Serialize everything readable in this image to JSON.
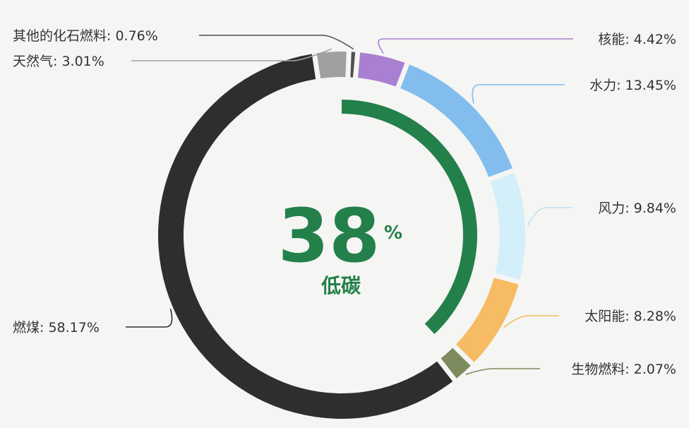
{
  "chart_data": {
    "type": "pie",
    "variant": "donut",
    "slices": [
      {
        "name": "核能",
        "value": 4.42,
        "label": "核能: 4.42%",
        "color": "#a97fd1"
      },
      {
        "name": "水力",
        "value": 13.45,
        "label": "水力: 13.45%",
        "color": "#82bdee"
      },
      {
        "name": "风力",
        "value": 9.84,
        "label": "风力: 9.84%",
        "color": "#d2effa"
      },
      {
        "name": "太阳能",
        "value": 8.28,
        "label": "太阳能: 8.28%",
        "color": "#f6bb63"
      },
      {
        "name": "生物燃料",
        "value": 2.07,
        "label": "生物燃料: 2.07%",
        "color": "#7d8c5e"
      },
      {
        "name": "燃煤",
        "value": 58.17,
        "label": "燃煤: 58.17%",
        "color": "#2e2e2e"
      },
      {
        "name": "天然气",
        "value": 3.01,
        "label": "天然气: 3.01%",
        "color": "#a0a0a0"
      },
      {
        "name": "其他的化石燃料",
        "value": 0.76,
        "label": "其他的化石燃料: 0.76%",
        "color": "#505050"
      }
    ],
    "center": {
      "value": 38,
      "value_text": "38",
      "unit": "%",
      "caption": "低碳",
      "color": "#23804a"
    }
  }
}
